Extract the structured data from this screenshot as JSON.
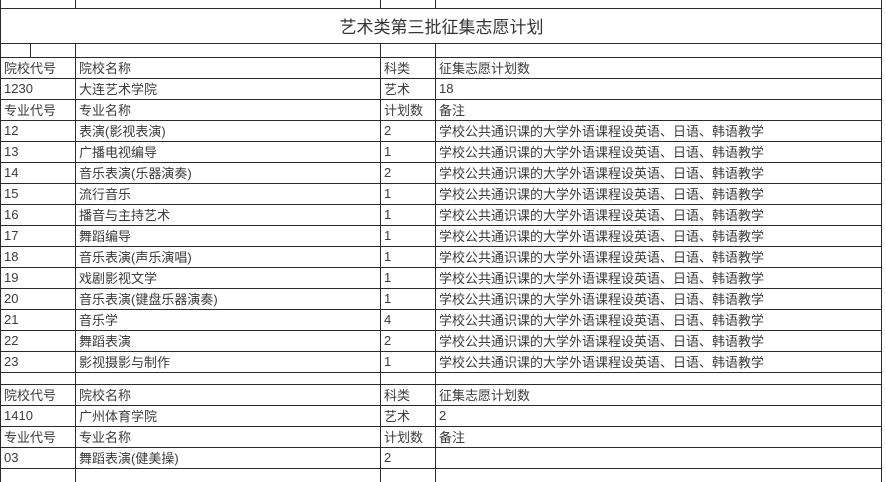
{
  "page": {
    "title": "艺术类第三批征集志愿计划"
  },
  "labels": {
    "college_code": "院校代号",
    "college_name": "院校名称",
    "category": "科类",
    "plan_count": "征集志愿计划数",
    "major_code": "专业代号",
    "major_name": "专业名称",
    "count": "计划数",
    "remark": "备注"
  },
  "sections": [
    {
      "college": {
        "code": "1230",
        "name": "大连艺术学院",
        "category": "艺术",
        "plan_count": "18"
      },
      "majors": [
        {
          "code": "12",
          "name": "表演(影视表演)",
          "count": "2",
          "remark": "学校公共通识课的大学外语课程设英语、日语、韩语教学"
        },
        {
          "code": "13",
          "name": "广播电视编导",
          "count": "1",
          "remark": "学校公共通识课的大学外语课程设英语、日语、韩语教学"
        },
        {
          "code": "14",
          "name": "音乐表演(乐器演奏)",
          "count": "2",
          "remark": "学校公共通识课的大学外语课程设英语、日语、韩语教学"
        },
        {
          "code": "15",
          "name": "流行音乐",
          "count": "1",
          "remark": "学校公共通识课的大学外语课程设英语、日语、韩语教学"
        },
        {
          "code": "16",
          "name": "播音与主持艺术",
          "count": "1",
          "remark": "学校公共通识课的大学外语课程设英语、日语、韩语教学"
        },
        {
          "code": "17",
          "name": "舞蹈编导",
          "count": "1",
          "remark": "学校公共通识课的大学外语课程设英语、日语、韩语教学"
        },
        {
          "code": "18",
          "name": "音乐表演(声乐演唱)",
          "count": "1",
          "remark": "学校公共通识课的大学外语课程设英语、日语、韩语教学"
        },
        {
          "code": "19",
          "name": "戏剧影视文学",
          "count": "1",
          "remark": "学校公共通识课的大学外语课程设英语、日语、韩语教学"
        },
        {
          "code": "20",
          "name": "音乐表演(键盘乐器演奏)",
          "count": "1",
          "remark": "学校公共通识课的大学外语课程设英语、日语、韩语教学"
        },
        {
          "code": "21",
          "name": "音乐学",
          "count": "4",
          "remark": "学校公共通识课的大学外语课程设英语、日语、韩语教学"
        },
        {
          "code": "22",
          "name": "舞蹈表演",
          "count": "2",
          "remark": "学校公共通识课的大学外语课程设英语、日语、韩语教学"
        },
        {
          "code": "23",
          "name": "影视摄影与制作",
          "count": "1",
          "remark": "学校公共通识课的大学外语课程设英语、日语、韩语教学"
        }
      ]
    },
    {
      "college": {
        "code": "1410",
        "name": "广州体育学院",
        "category": "艺术",
        "plan_count": "2"
      },
      "majors": [
        {
          "code": "03",
          "name": "舞蹈表演(健美操)",
          "count": "2",
          "remark": ""
        }
      ]
    }
  ],
  "colors": {
    "text": "#3b3b3b",
    "border": "#2b2b2b",
    "background": "#ffffff"
  }
}
